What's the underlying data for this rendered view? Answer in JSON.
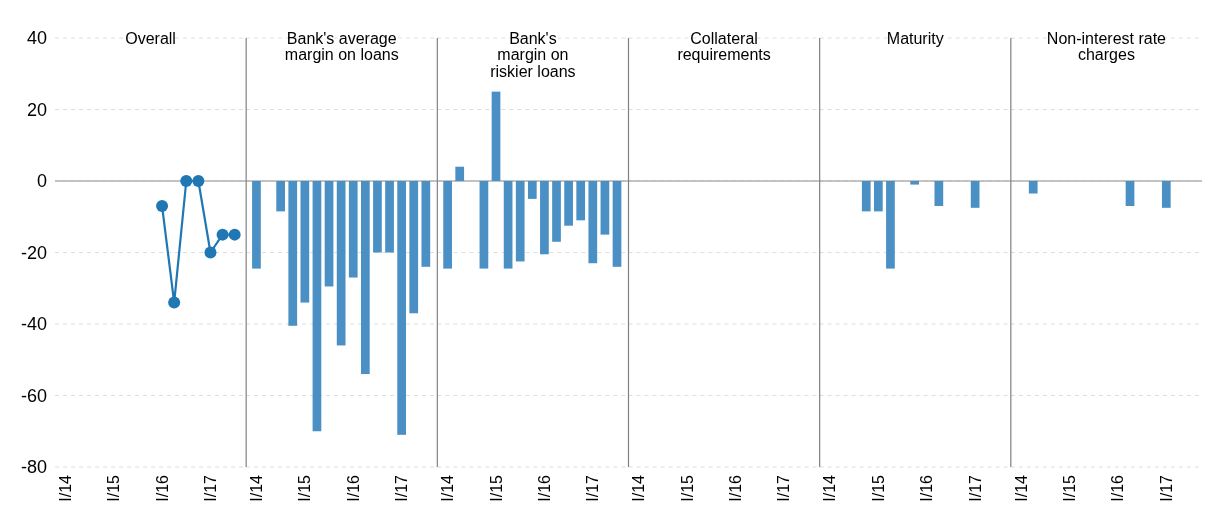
{
  "chart_data": [
    {
      "type": "line",
      "title": "Overall",
      "categories": [
        "I/14",
        null,
        null,
        null,
        "I/15",
        null,
        null,
        null,
        "I/16",
        null,
        null,
        null,
        "I/17",
        null,
        null
      ],
      "marker": "circle",
      "series": [
        {
          "color": "#1f77b4",
          "values": [
            null,
            null,
            null,
            null,
            null,
            null,
            null,
            null,
            -7,
            -34,
            0,
            0,
            -20,
            -15,
            -15
          ]
        }
      ],
      "ylim": [
        -80,
        40
      ],
      "yticks": [
        -80,
        -60,
        -40,
        -20,
        0,
        20,
        40
      ],
      "grid": "y",
      "ref_lines": [
        {
          "axis": "y",
          "value": 0,
          "color": "#b0b0b0"
        }
      ]
    },
    {
      "type": "bar",
      "title": "Bank's average\nmargin on loans",
      "categories": [
        "I/14",
        null,
        null,
        null,
        "I/15",
        null,
        null,
        null,
        "I/16",
        null,
        null,
        null,
        "I/17",
        null,
        null
      ],
      "series": [
        {
          "color": "#4a90c4",
          "values": [
            -24.5,
            null,
            -8.5,
            -40.5,
            -34,
            -70,
            -29.5,
            -46,
            -27,
            -54,
            -20,
            -20,
            -71,
            -37,
            -24
          ]
        }
      ],
      "ylim": [
        -80,
        40
      ],
      "yticks": [
        -80,
        -60,
        -40,
        -20,
        0,
        20,
        40
      ],
      "tick_labels": "x",
      "grid": "y",
      "ref_lines": [
        {
          "axis": "y",
          "value": 0,
          "color": "#b0b0b0"
        }
      ]
    },
    {
      "type": "bar",
      "title": "Bank's\nmargin on\nriskier loans",
      "categories": [
        "I/14",
        null,
        null,
        null,
        "I/15",
        null,
        null,
        null,
        "I/16",
        null,
        null,
        null,
        "I/17",
        null,
        null
      ],
      "series": [
        {
          "color": "#4a90c4",
          "values": [
            -24.5,
            4,
            null,
            -24.5,
            25,
            -24.5,
            -22.5,
            -5,
            -20.5,
            -17,
            -12.5,
            -11,
            -23,
            -15,
            -24
          ]
        }
      ],
      "ylim": [
        -80,
        40
      ],
      "yticks": [
        -80,
        -60,
        -40,
        -20,
        0,
        20,
        40
      ],
      "tick_labels": "x",
      "grid": "y",
      "ref_lines": [
        {
          "axis": "y",
          "value": 0,
          "color": "#b0b0b0"
        }
      ]
    },
    {
      "type": "bar",
      "title": "Collateral\nrequirements",
      "categories": [
        "I/14",
        null,
        null,
        null,
        "I/15",
        null,
        null,
        null,
        "I/16",
        null,
        null,
        null,
        "I/17",
        null,
        null
      ],
      "series": [
        {
          "color": "#4a90c4",
          "values": [
            null,
            null,
            null,
            null,
            null,
            null,
            null,
            null,
            null,
            null,
            null,
            null,
            null,
            null,
            null
          ]
        }
      ],
      "ylim": [
        -80,
        40
      ],
      "yticks": [
        -80,
        -60,
        -40,
        -20,
        0,
        20,
        40
      ],
      "tick_labels": "x",
      "grid": "y",
      "ref_lines": [
        {
          "axis": "y",
          "value": 0,
          "color": "#b0b0b0"
        }
      ]
    },
    {
      "type": "bar",
      "title": "Maturity",
      "categories": [
        "I/14",
        null,
        null,
        null,
        "I/15",
        null,
        null,
        null,
        "I/16",
        null,
        null,
        null,
        "I/17",
        null,
        null
      ],
      "series": [
        {
          "color": "#4a90c4",
          "values": [
            null,
            null,
            null,
            -8.5,
            -8.5,
            -24.5,
            null,
            -1,
            null,
            -7,
            null,
            null,
            -7.5,
            null,
            null
          ]
        }
      ],
      "ylim": [
        -80,
        40
      ],
      "yticks": [
        -80,
        -60,
        -40,
        -20,
        0,
        20,
        40
      ],
      "tick_labels": "x",
      "grid": "y",
      "ref_lines": [
        {
          "axis": "y",
          "value": 0,
          "color": "#b0b0b0"
        }
      ]
    },
    {
      "type": "bar",
      "title": "Non-interest rate\ncharges",
      "categories": [
        "I/14",
        null,
        null,
        null,
        "I/15",
        null,
        null,
        null,
        "I/16",
        null,
        null,
        null,
        "I/17",
        null,
        null
      ],
      "series": [
        {
          "color": "#4a90c4",
          "values": [
            null,
            -3.5,
            null,
            null,
            null,
            null,
            null,
            null,
            null,
            -7,
            null,
            null,
            -7.5,
            null,
            null
          ]
        }
      ],
      "ylim": [
        -80,
        40
      ],
      "yticks": [
        -80,
        -60,
        -40,
        -20,
        0,
        20,
        40
      ],
      "tick_labels": "x",
      "grid": "y",
      "ref_lines": [
        {
          "axis": "y",
          "value": 0,
          "color": "#b0b0b0"
        }
      ]
    }
  ]
}
